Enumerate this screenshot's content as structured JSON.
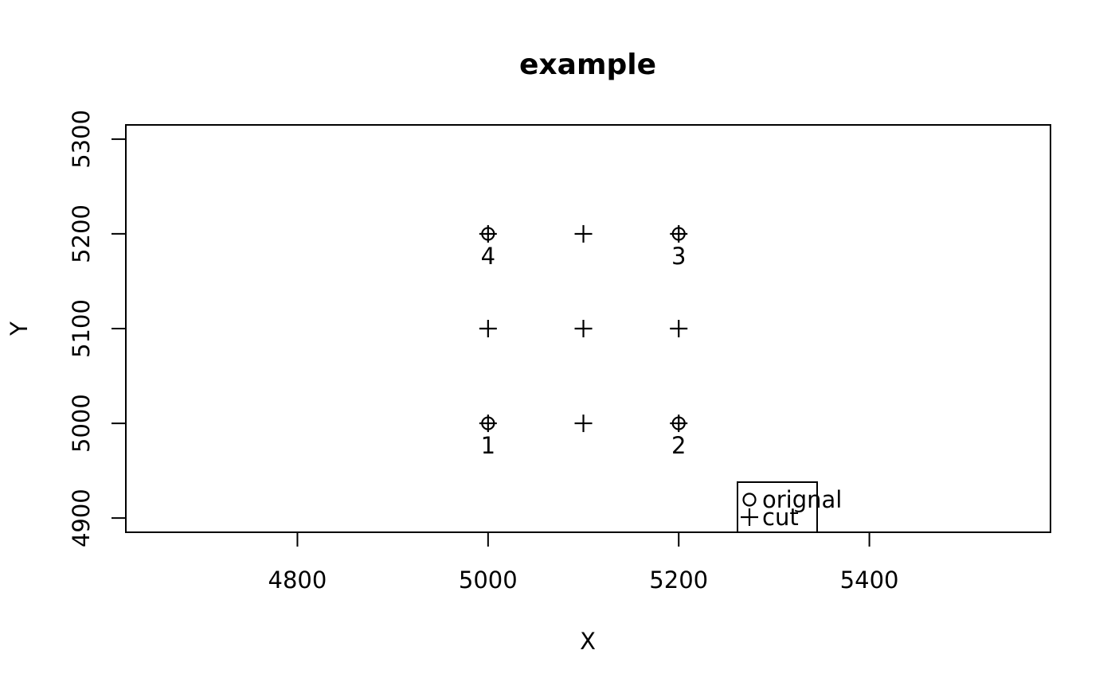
{
  "chart_data": {
    "type": "scatter",
    "title": "example",
    "xlabel": "X",
    "ylabel": "Y",
    "xlim": [
      4620,
      5590
    ],
    "ylim": [
      4885,
      5315
    ],
    "x_ticks": [
      4800,
      5000,
      5200,
      5400
    ],
    "x_tick_labels": [
      "4800",
      "5000",
      "5200",
      "5400"
    ],
    "y_ticks": [
      4900,
      5000,
      5100,
      5200,
      5300
    ],
    "y_tick_labels": [
      "4900",
      "5000",
      "5100",
      "5200",
      "5300"
    ],
    "grid": false,
    "series": [
      {
        "name": "orignal",
        "marker": "circle",
        "points": [
          {
            "x": 5000,
            "y": 5000,
            "label": "1"
          },
          {
            "x": 5200,
            "y": 5000,
            "label": "2"
          },
          {
            "x": 5200,
            "y": 5200,
            "label": "3"
          },
          {
            "x": 5000,
            "y": 5200,
            "label": "4"
          }
        ]
      },
      {
        "name": "cut",
        "marker": "plus",
        "points": [
          {
            "x": 5000,
            "y": 5000
          },
          {
            "x": 5100,
            "y": 5000
          },
          {
            "x": 5200,
            "y": 5000
          },
          {
            "x": 5000,
            "y": 5100
          },
          {
            "x": 5100,
            "y": 5100
          },
          {
            "x": 5200,
            "y": 5100
          },
          {
            "x": 5000,
            "y": 5200
          },
          {
            "x": 5100,
            "y": 5200
          },
          {
            "x": 5200,
            "y": 5200
          }
        ]
      }
    ],
    "legend": {
      "position": "bottom-right-inside",
      "entries": [
        {
          "symbol": "o",
          "label": "orignal"
        },
        {
          "symbol": "+",
          "label": "cut"
        }
      ]
    }
  }
}
